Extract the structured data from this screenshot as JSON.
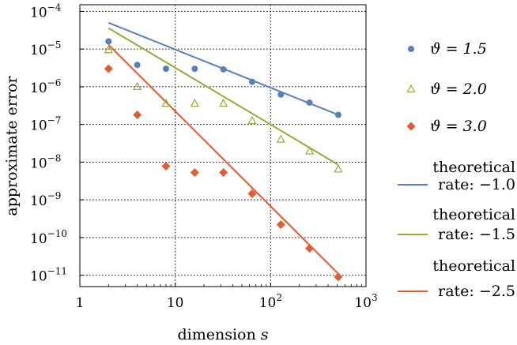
{
  "chart_data": {
    "type": "scatter",
    "xlabel": "dimension",
    "xlabel_var": "s",
    "ylabel": "approximate error",
    "x_scale": "log",
    "y_scale": "log",
    "xlim": [
      1,
      1000
    ],
    "ylim": [
      5e-12,
      0.00015
    ],
    "grid": true,
    "legend_position": "right",
    "x_ticks": [
      {
        "label": "1",
        "value": 1
      },
      {
        "label": "10",
        "value": 10
      },
      {
        "label": "10",
        "sup": "2",
        "value": 100
      },
      {
        "label": "10",
        "sup": "3",
        "value": 1000
      }
    ],
    "y_ticks": [
      {
        "label": "10",
        "sup": "−4",
        "value": 0.0001
      },
      {
        "label": "10",
        "sup": "−5",
        "value": 1e-05
      },
      {
        "label": "10",
        "sup": "−6",
        "value": 1e-06
      },
      {
        "label": "10",
        "sup": "−7",
        "value": 1e-07
      },
      {
        "label": "10",
        "sup": "−8",
        "value": 1e-08
      },
      {
        "label": "10",
        "sup": "−9",
        "value": 1e-09
      },
      {
        "label": "10",
        "sup": "−10",
        "value": 1e-10
      },
      {
        "label": "10",
        "sup": "−11",
        "value": 1e-11
      }
    ],
    "series": [
      {
        "name": "ϑ = 1.5",
        "kind": "points",
        "marker": "circle",
        "color": "#5b7fb8",
        "points": [
          [
            2,
            1.6e-05
          ],
          [
            4,
            3.8e-06
          ],
          [
            8,
            3e-06
          ],
          [
            16,
            3e-06
          ],
          [
            32,
            2.9e-06
          ],
          [
            64,
            1.35e-06
          ],
          [
            128,
            6.2e-07
          ],
          [
            256,
            3.8e-07
          ],
          [
            512,
            1.8e-07
          ]
        ]
      },
      {
        "name": "ϑ = 2.0",
        "kind": "points",
        "marker": "triangle-open",
        "color": "#8fb032",
        "points": [
          [
            2,
            9.5e-06
          ],
          [
            4,
            1e-06
          ],
          [
            8,
            3.6e-07
          ],
          [
            16,
            3.6e-07
          ],
          [
            32,
            3.6e-07
          ],
          [
            64,
            1.25e-07
          ],
          [
            128,
            4e-08
          ],
          [
            256,
            1.95e-08
          ],
          [
            512,
            6.5e-09
          ]
        ]
      },
      {
        "name": "ϑ = 3.0",
        "kind": "points",
        "marker": "diamond",
        "color": "#e35b2e",
        "points": [
          [
            2,
            3e-06
          ],
          [
            4,
            1.8e-07
          ],
          [
            8,
            7.8e-09
          ],
          [
            16,
            5.3e-09
          ],
          [
            32,
            5.3e-09
          ],
          [
            64,
            1.45e-09
          ],
          [
            128,
            2.2e-10
          ],
          [
            256,
            5.2e-11
          ],
          [
            512,
            9e-12
          ]
        ]
      },
      {
        "name": "theoretical rate: −1.0",
        "name_lines": [
          "theoretical",
          "rate: −1.0"
        ],
        "kind": "line",
        "color": "#5b7fb8",
        "points": [
          [
            2,
            5e-05
          ],
          [
            512,
            1.8e-07
          ]
        ]
      },
      {
        "name": "theoretical rate: −1.5",
        "name_lines": [
          "theoretical",
          "rate: −1.5"
        ],
        "kind": "line",
        "color": "#8fb032",
        "points": [
          [
            2,
            3.6e-05
          ],
          [
            512,
            8.5e-09
          ]
        ]
      },
      {
        "name": "theoretical rate: −2.5",
        "name_lines": [
          "theoretical",
          "rate: −2.5"
        ],
        "kind": "line",
        "color": "#e35b2e",
        "points": [
          [
            2,
            1.3e-05
          ],
          [
            512,
            1.1e-11
          ]
        ]
      }
    ]
  }
}
